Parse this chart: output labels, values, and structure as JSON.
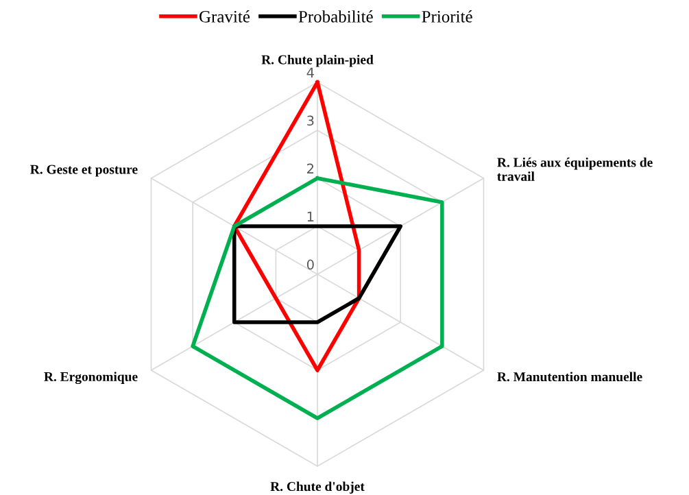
{
  "chart_data": {
    "type": "radar",
    "categories": [
      "R. Chute plain-pied",
      "R. Liés aux équipements de travail",
      "R. Manutention manuelle",
      "R. Chute d'objet",
      "R. Ergonomique",
      "R. Geste et posture"
    ],
    "series": [
      {
        "name": "Gravité",
        "color": "#ff0000",
        "values": [
          4,
          1,
          1,
          2,
          1,
          2
        ]
      },
      {
        "name": "Probabilité",
        "color": "#000000",
        "values": [
          1,
          2,
          1,
          1,
          2,
          2
        ]
      },
      {
        "name": "Priorité",
        "color": "#00b050",
        "values": [
          2,
          3,
          3,
          3,
          3,
          2
        ]
      }
    ],
    "ylim": [
      0,
      4
    ],
    "yticks": [
      0,
      1,
      2,
      3,
      4
    ],
    "grid": true,
    "legend": "top",
    "marker": "none",
    "line_style": "solid"
  }
}
